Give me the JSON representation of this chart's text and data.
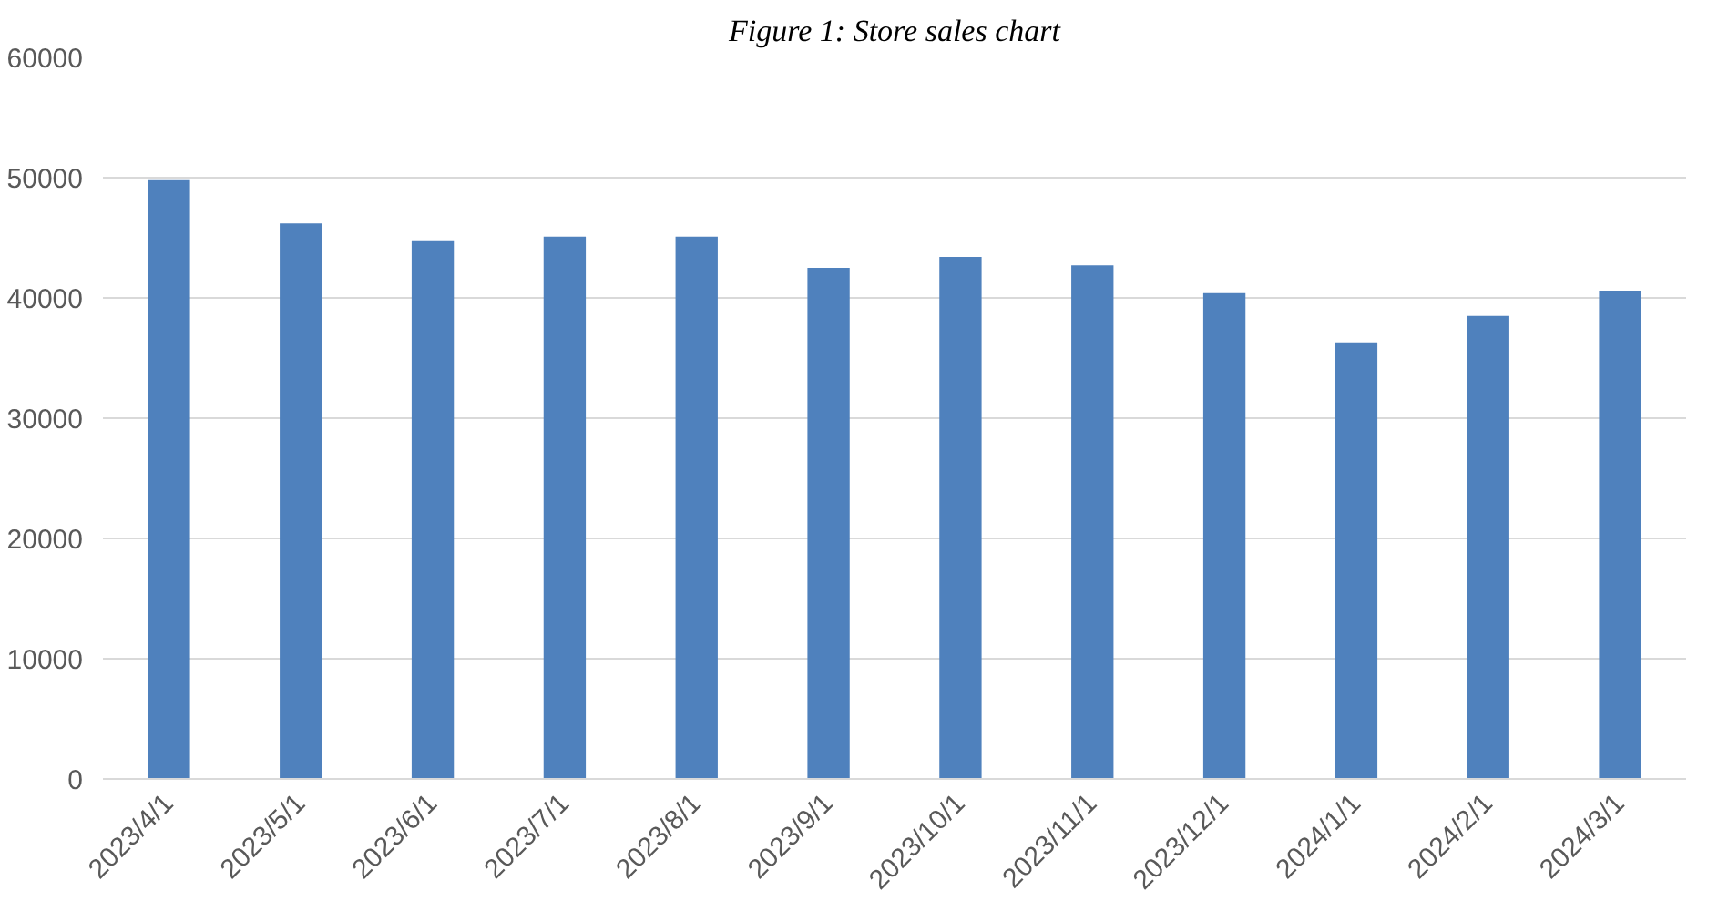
{
  "chart_data": {
    "type": "bar",
    "title": "Figure 1: Store sales chart",
    "categories": [
      "2023/4/1",
      "2023/5/1",
      "2023/6/1",
      "2023/7/1",
      "2023/8/1",
      "2023/9/1",
      "2023/10/1",
      "2023/11/1",
      "2023/12/1",
      "2024/1/1",
      "2024/2/1",
      "2024/3/1"
    ],
    "values": [
      49800,
      46200,
      44800,
      45100,
      45100,
      42500,
      43400,
      42700,
      40400,
      36300,
      38500,
      40600
    ],
    "color": "#4f81bd",
    "ylim": [
      0,
      60000
    ],
    "yticks": [
      0,
      10000,
      20000,
      30000,
      40000,
      50000,
      60000
    ],
    "grid": "y"
  }
}
